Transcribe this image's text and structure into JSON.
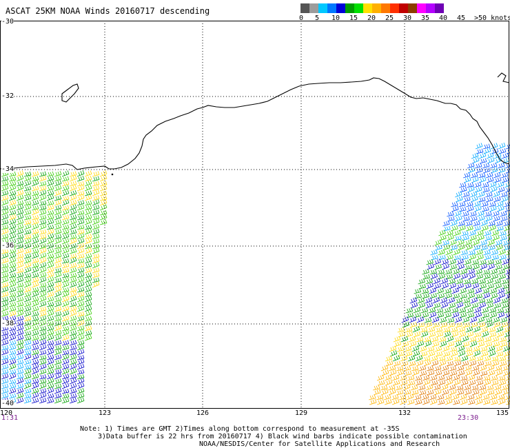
{
  "title": "ASCAT 25KM NOAA Winds 20160717 descending",
  "legend": {
    "labels": [
      "0",
      "5",
      "10",
      "15",
      "20",
      "25",
      "30",
      "35",
      "40",
      "45",
      ">50 knots"
    ],
    "colors": [
      "#555555",
      "#9c9c9c",
      "#00c8ff",
      "#0078ff",
      "#0000d8",
      "#009c00",
      "#00e000",
      "#ffe000",
      "#ffb000",
      "#ff7800",
      "#ff3000",
      "#c00000",
      "#8c3c00",
      "#ff00ff",
      "#b400ff",
      "#6e00b4"
    ]
  },
  "latitude_labels": [
    "-30",
    "-32",
    "-34",
    "-36",
    "-38",
    "-40"
  ],
  "longitude_labels": [
    "120",
    "123",
    "126",
    "129",
    "132",
    "135"
  ],
  "swath_times": {
    "left": "1:31",
    "right": "23:30"
  },
  "notes": [
    "Note: 1) Times are GMT 2)Times along bottom correspond to measurement at -35S",
    "3)Data buffer is 22 hrs from 20160717 4) Black wind barbs indicate possible contamination",
    "NOAA/NESDIS/Center for Satellite Applications and Research"
  ],
  "icons": {
    "wind_barb": "wind-barb-icon",
    "coastline": "coastline-line"
  }
}
